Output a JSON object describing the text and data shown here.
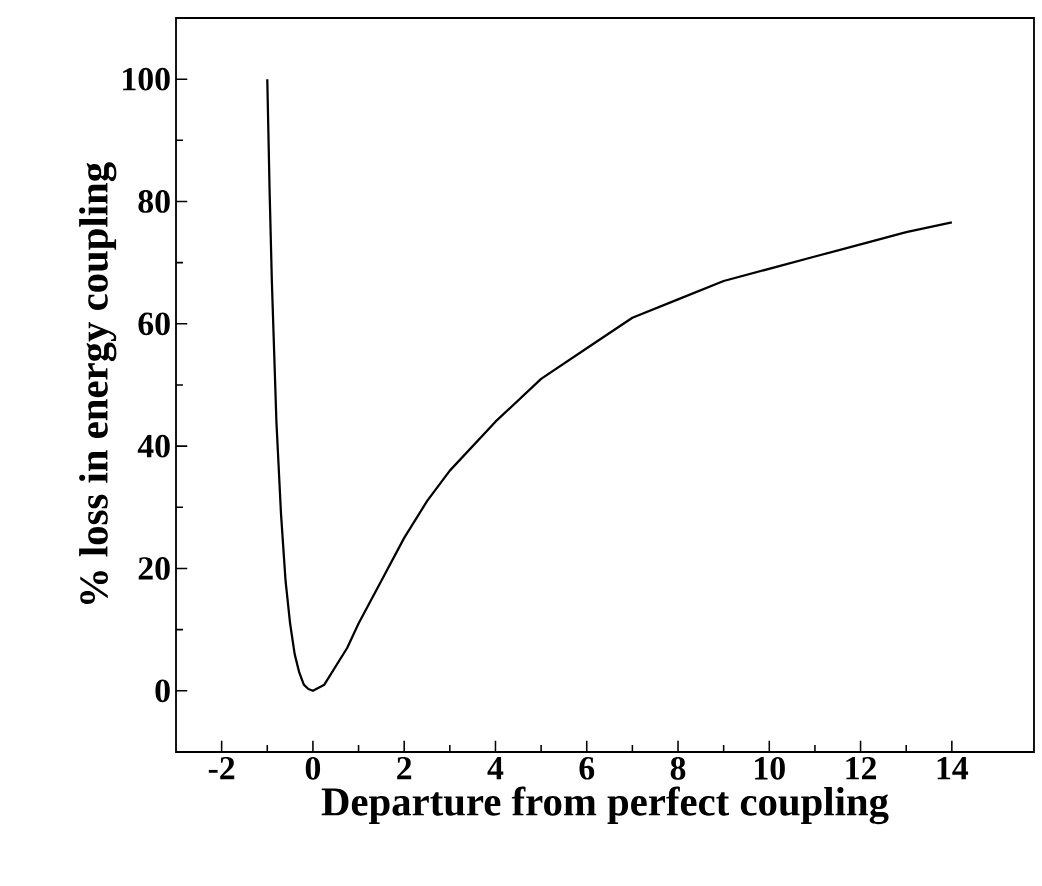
{
  "chart_data": {
    "type": "line",
    "xlabel": "Departure from perfect coupling",
    "ylabel": "% loss in energy coupling",
    "x": [
      -1,
      -0.95,
      -0.9,
      -0.8,
      -0.7,
      -0.6,
      -0.5,
      -0.4,
      -0.3,
      -0.2,
      -0.1,
      0,
      0.25,
      0.5,
      0.75,
      1,
      1.5,
      2,
      2.5,
      3,
      4,
      5,
      6,
      7,
      8,
      9,
      10,
      11,
      12,
      13,
      14
    ],
    "series": [
      {
        "color": "#000000",
        "values": [
          100,
          82,
          67,
          44,
          29,
          18,
          11,
          6,
          3,
          1,
          0.3,
          0,
          1,
          4,
          7,
          11,
          18,
          25,
          31,
          36,
          44,
          51,
          56,
          61,
          64,
          67,
          69,
          71,
          73,
          75,
          76.6
        ]
      }
    ],
    "xlim": [
      -3,
      15.8
    ],
    "ylim": [
      -10,
      110
    ],
    "xticks": [
      -2,
      0,
      2,
      4,
      6,
      8,
      10,
      12,
      14
    ],
    "yticks": [
      0,
      20,
      40,
      60,
      80,
      100
    ],
    "marker": "none",
    "line_style": "solid",
    "grid": false
  }
}
